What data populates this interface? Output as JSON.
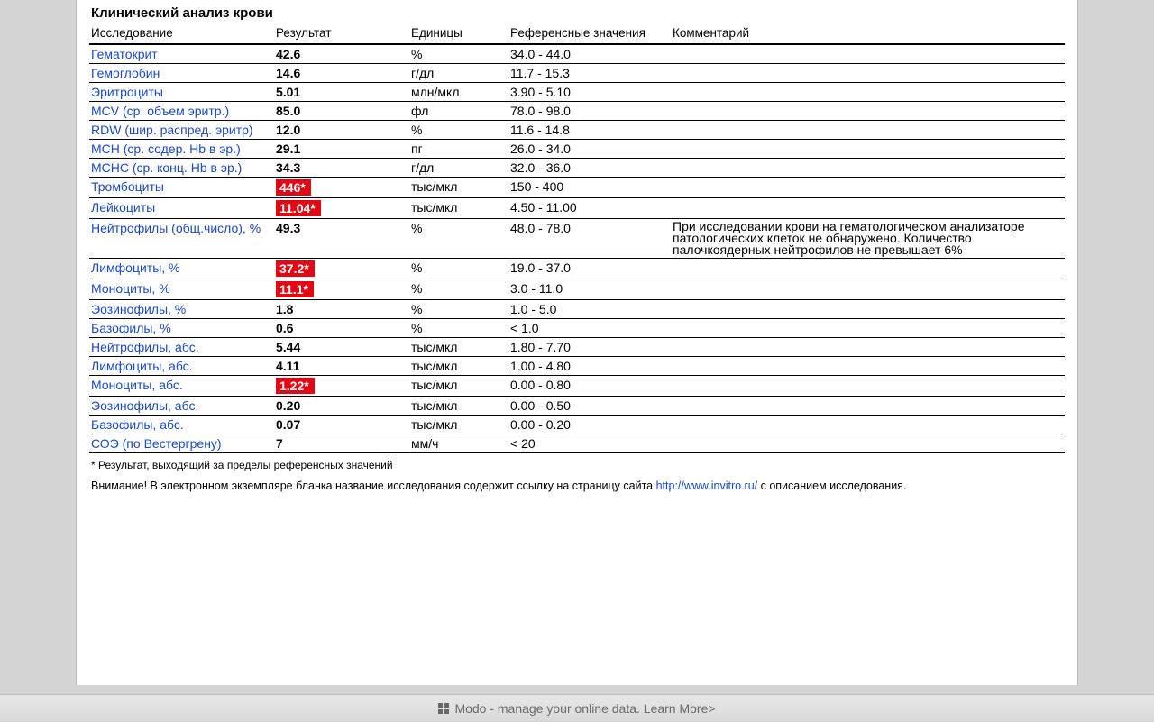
{
  "title": "Клинический анализ крови",
  "columns": {
    "test": "Исследование",
    "result": "Результат",
    "units": "Единицы",
    "ref": "Референсные значения",
    "comment": "Комментарий"
  },
  "rows": [
    {
      "test": "Гематокрит",
      "result": "42.6",
      "units": "%",
      "ref": "34.0 - 44.0",
      "flag": false,
      "comment": ""
    },
    {
      "test": "Гемоглобин",
      "result": "14.6",
      "units": "г/дл",
      "ref": "11.7 - 15.3",
      "flag": false,
      "comment": ""
    },
    {
      "test": "Эритроциты",
      "result": "5.01",
      "units": "млн/мкл",
      "ref": "3.90 - 5.10",
      "flag": false,
      "comment": ""
    },
    {
      "test": "MCV (ср. объем эритр.)",
      "result": "85.0",
      "units": "фл",
      "ref": "78.0 - 98.0",
      "flag": false,
      "comment": ""
    },
    {
      "test": "RDW (шир. распред. эритр)",
      "result": "12.0",
      "units": "%",
      "ref": "11.6 - 14.8",
      "flag": false,
      "comment": ""
    },
    {
      "test": "MCH (ср. содер. Hb в эр.)",
      "result": "29.1",
      "units": "пг",
      "ref": "26.0 - 34.0",
      "flag": false,
      "comment": ""
    },
    {
      "test": "MCHC (ср. конц. Hb в эр.)",
      "result": "34.3",
      "units": "г/дл",
      "ref": "32.0 - 36.0",
      "flag": false,
      "comment": ""
    },
    {
      "test": "Тромбоциты",
      "result": "446*",
      "units": "тыс/мкл",
      "ref": "150 - 400",
      "flag": true,
      "comment": ""
    },
    {
      "test": "Лейкоциты",
      "result": "11.04*",
      "units": "тыс/мкл",
      "ref": "4.50 - 11.00",
      "flag": true,
      "comment": ""
    },
    {
      "test": "Нейтрофилы (общ.число), %",
      "result": "49.3",
      "units": "%",
      "ref": "48.0 - 78.0",
      "flag": false,
      "comment": "При исследовании крови на гематологическом анализаторе патологических клеток не обнаружено. Количество палочкоядерных нейтрофилов не превышает 6%"
    },
    {
      "test": "Лимфоциты, %",
      "result": "37.2*",
      "units": "%",
      "ref": "19.0 - 37.0",
      "flag": true,
      "comment": ""
    },
    {
      "test": "Моноциты, %",
      "result": "11.1*",
      "units": "%",
      "ref": "3.0 - 11.0",
      "flag": true,
      "comment": ""
    },
    {
      "test": "Эозинофилы, %",
      "result": "1.8",
      "units": "%",
      "ref": "1.0 - 5.0",
      "flag": false,
      "comment": ""
    },
    {
      "test": "Базофилы, %",
      "result": "0.6",
      "units": "%",
      "ref": "< 1.0",
      "flag": false,
      "comment": ""
    },
    {
      "test": "Нейтрофилы, абс.",
      "result": "5.44",
      "units": "тыс/мкл",
      "ref": "1.80 - 7.70",
      "flag": false,
      "comment": ""
    },
    {
      "test": "Лимфоциты, абс.",
      "result": "4.11",
      "units": "тыс/мкл",
      "ref": "1.00 - 4.80",
      "flag": false,
      "comment": ""
    },
    {
      "test": "Моноциты, абс.",
      "result": "1.22*",
      "units": "тыс/мкл",
      "ref": "0.00 - 0.80",
      "flag": true,
      "comment": ""
    },
    {
      "test": "Эозинофилы, абс.",
      "result": "0.20",
      "units": "тыс/мкл",
      "ref": "0.00 - 0.50",
      "flag": false,
      "comment": ""
    },
    {
      "test": "Базофилы, абс.",
      "result": "0.07",
      "units": "тыс/мкл",
      "ref": "0.00 - 0.20",
      "flag": false,
      "comment": ""
    },
    {
      "test": "СОЭ (по Вестергрену)",
      "result": "7",
      "units": "мм/ч",
      "ref": "< 20",
      "flag": false,
      "comment": ""
    }
  ],
  "footnote": "* Результат, выходящий за пределы референсных значений",
  "warning_pre": "Внимание! В электронном экземпляре бланка название исследования содержит ссылку на страницу сайта ",
  "warning_link": "http://www.invitro.ru/",
  "warning_post": " с описанием исследования.",
  "bottom_bar": "Modo - manage your online data. Learn More>",
  "colors": {
    "link": "#1a4bbe",
    "flag_bg": "#e30613",
    "page_bg": "#d4d4d4"
  }
}
